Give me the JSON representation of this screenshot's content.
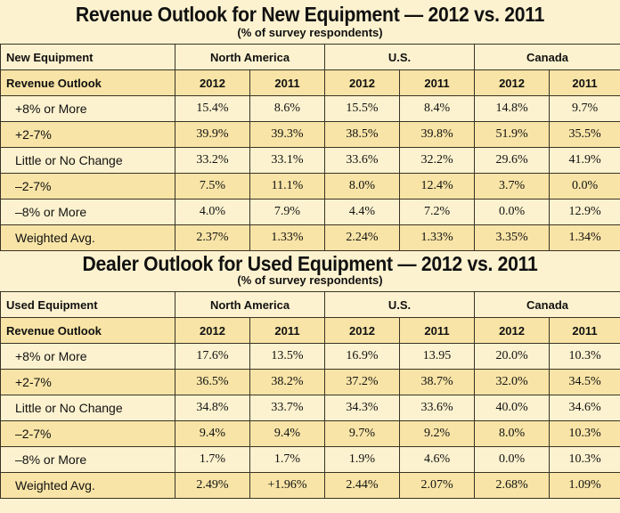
{
  "tables": [
    {
      "title": "Revenue Outlook for New Equipment — 2012 vs. 2011",
      "subtitle": "(% of survey respondents)",
      "corner_label": "New Equipment",
      "row_header": "Revenue Outlook",
      "regions": [
        "North America",
        "U.S.",
        "Canada"
      ],
      "years": [
        "2012",
        "2011",
        "2012",
        "2011",
        "2012",
        "2011"
      ],
      "rows": [
        {
          "label": "+8% or More",
          "values": [
            "15.4%",
            "8.6%",
            "15.5%",
            "8.4%",
            "14.8%",
            "9.7%"
          ]
        },
        {
          "label": "+2-7%",
          "values": [
            "39.9%",
            "39.3%",
            "38.5%",
            "39.8%",
            "51.9%",
            "35.5%"
          ]
        },
        {
          "label": "Little or No Change",
          "values": [
            "33.2%",
            "33.1%",
            "33.6%",
            "32.2%",
            "29.6%",
            "41.9%"
          ]
        },
        {
          "label": "–2-7%",
          "values": [
            "7.5%",
            "11.1%",
            "8.0%",
            "12.4%",
            "3.7%",
            "0.0%"
          ]
        },
        {
          "label": "–8% or More",
          "values": [
            "4.0%",
            "7.9%",
            "4.4%",
            "7.2%",
            "0.0%",
            "12.9%"
          ]
        },
        {
          "label": "Weighted Avg.",
          "values": [
            "2.37%",
            "1.33%",
            "2.24%",
            "1.33%",
            "3.35%",
            "1.34%"
          ]
        }
      ]
    },
    {
      "title": "Dealer Outlook for Used Equipment — 2012 vs. 2011",
      "subtitle": "(% of survey respondents)",
      "corner_label": "Used Equipment",
      "row_header": "Revenue Outlook",
      "regions": [
        "North America",
        "U.S.",
        "Canada"
      ],
      "years": [
        "2012",
        "2011",
        "2012",
        "2011",
        "2012",
        "2011"
      ],
      "rows": [
        {
          "label": "+8% or More",
          "values": [
            "17.6%",
            "13.5%",
            "16.9%",
            "13.95",
            "20.0%",
            "10.3%"
          ]
        },
        {
          "label": "+2-7%",
          "values": [
            "36.5%",
            "38.2%",
            "37.2%",
            "38.7%",
            "32.0%",
            "34.5%"
          ]
        },
        {
          "label": "Little or No Change",
          "values": [
            "34.8%",
            "33.7%",
            "34.3%",
            "33.6%",
            "40.0%",
            "34.6%"
          ]
        },
        {
          "label": "–2-7%",
          "values": [
            "9.4%",
            "9.4%",
            "9.7%",
            "9.2%",
            "8.0%",
            "10.3%"
          ]
        },
        {
          "label": "–8% or More",
          "values": [
            "1.7%",
            "1.7%",
            "1.9%",
            "4.6%",
            "0.0%",
            "10.3%"
          ]
        },
        {
          "label": "Weighted Avg.",
          "values": [
            "2.49%",
            "+1.96%",
            "2.44%",
            "2.07%",
            "2.68%",
            "1.09%"
          ]
        }
      ]
    }
  ]
}
